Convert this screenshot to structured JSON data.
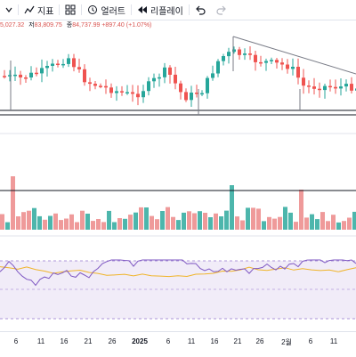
{
  "toolbar": {
    "items": [
      {
        "label": "",
        "icon": "timeframe-dropdown-icon"
      },
      {
        "label": "지표",
        "icon": "indicator-icon"
      },
      {
        "label": "",
        "icon": "grid-layout-icon"
      },
      {
        "label": "얼러트",
        "icon": "alert-icon"
      },
      {
        "label": "리플레이",
        "icon": "replay-icon"
      }
    ],
    "undo_icon": "undo-icon",
    "redo_icon": "redo-icon"
  },
  "ohlc": {
    "open_value": "5,027.32",
    "low_label": "저",
    "low_value": "83,809.75",
    "close_label": "종",
    "close_value": "84,737.99",
    "change": "+897.40 (+1.07%)"
  },
  "colors": {
    "up": "#26a69a",
    "down": "#ef5350",
    "up_vol": "#4db6ac",
    "down_vol": "#ef9a9a",
    "rsi_line": "#7e57c2",
    "rsi_ma": "#f0b429",
    "rsi_band": "#ede7f6",
    "line": "#131722",
    "trend": "#787b86"
  },
  "x_axis": {
    "labels": [
      "6",
      "11",
      "16",
      "21",
      "26",
      "2025",
      "6",
      "11",
      "16",
      "21",
      "26",
      "2월",
      "6",
      "11"
    ]
  }
}
